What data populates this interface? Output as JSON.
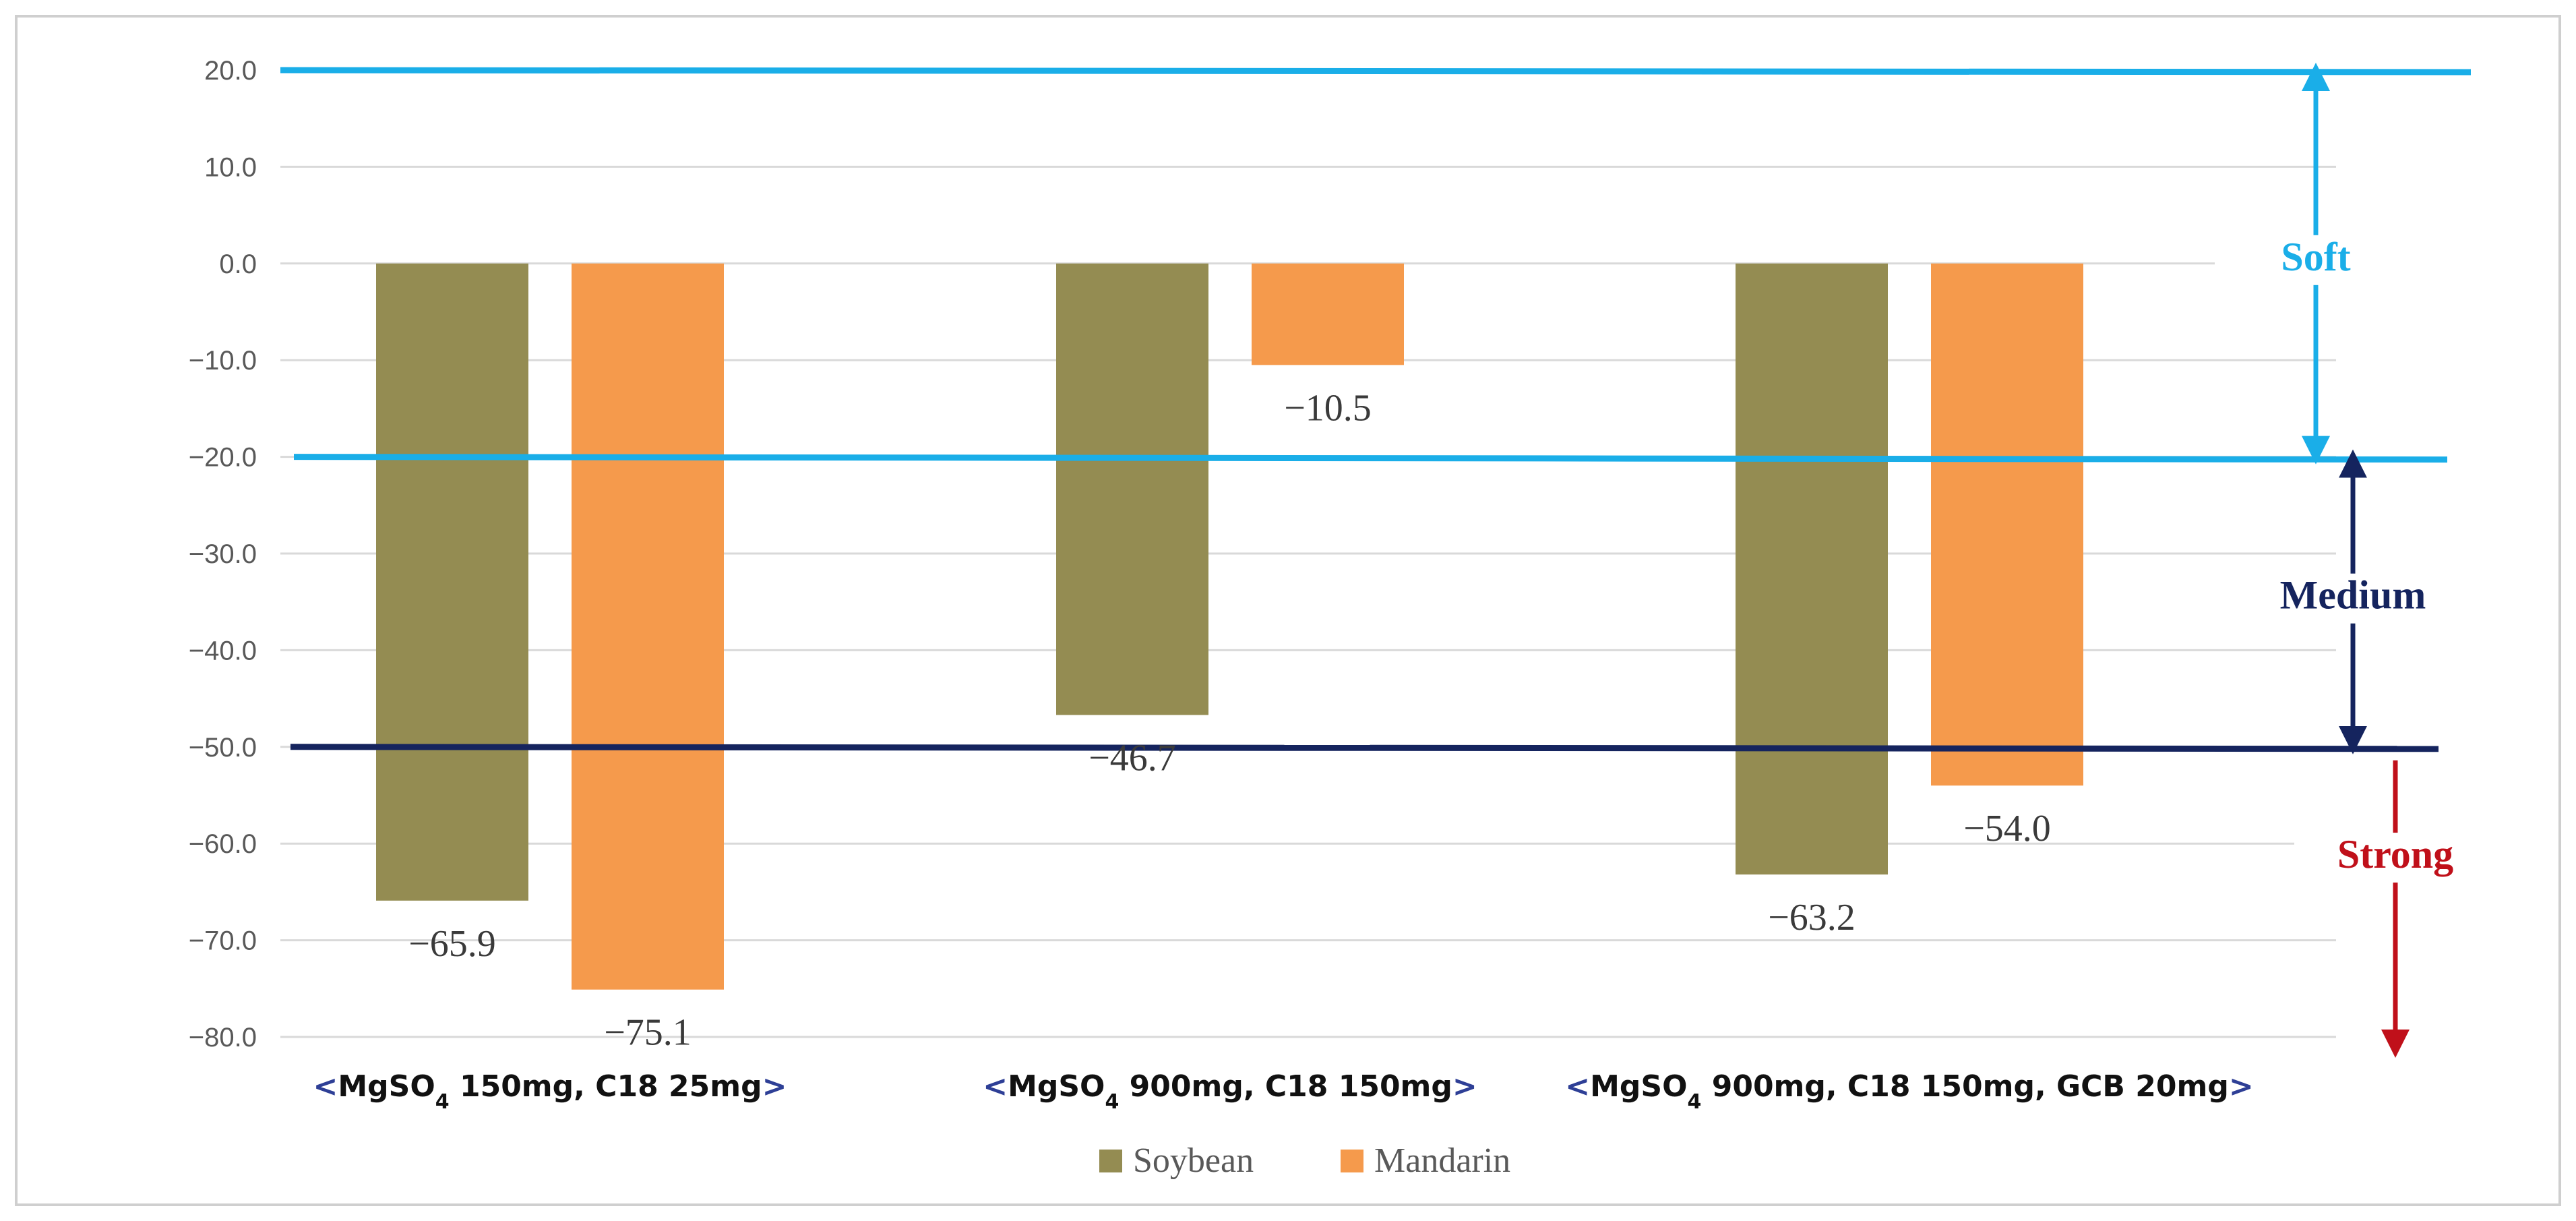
{
  "chart_data": {
    "type": "bar",
    "categories": [
      {
        "open": "<",
        "pre": "MgSO",
        "sub": "4",
        "post": " 150mg, C18 25mg",
        "close": ">"
      },
      {
        "open": "<",
        "pre": "MgSO",
        "sub": "4",
        "post": " 900mg, C18 150mg",
        "close": ">"
      },
      {
        "open": "<",
        "pre": "MgSO",
        "sub": "4",
        "post": " 900mg, C18 150mg, GCB 20mg",
        "close": ">"
      }
    ],
    "series": [
      {
        "name": "Soybean",
        "color": "#948c52",
        "values": [
          -65.9,
          -46.7,
          -63.2
        ],
        "labels": [
          "−65.9",
          "−46.7",
          "−63.2"
        ]
      },
      {
        "name": "Mandarin",
        "color": "#f59a4c",
        "values": [
          -75.1,
          -10.5,
          -54.0
        ],
        "labels": [
          "−75.1",
          "−10.5",
          "−54.0"
        ]
      }
    ],
    "ylim": [
      -80,
      20
    ],
    "yticks": [
      20,
      10,
      0,
      -10,
      -20,
      -30,
      -40,
      -50,
      -60,
      -70,
      -80
    ],
    "ytick_labels": [
      "20.0",
      "10.0",
      "0.0",
      "−10.0",
      "−20.0",
      "−30.0",
      "−40.0",
      "−50.0",
      "−60.0",
      "−70.0",
      "−80.0"
    ],
    "grid": true,
    "legend_position": "bottom-center",
    "reference_lines": [
      {
        "value": 20,
        "color": "#1aaee8"
      },
      {
        "value": -20,
        "color": "#1aaee8"
      },
      {
        "value": -50,
        "color": "#15245e"
      }
    ],
    "zones": [
      {
        "label": "Soft",
        "color": "#1aaee8",
        "from": 20,
        "to": -20
      },
      {
        "label": "Medium",
        "color": "#15245e",
        "from": -20,
        "to": -50
      },
      {
        "label": "Strong",
        "color": "#c0101a",
        "from": -50,
        "to": -80
      }
    ]
  }
}
